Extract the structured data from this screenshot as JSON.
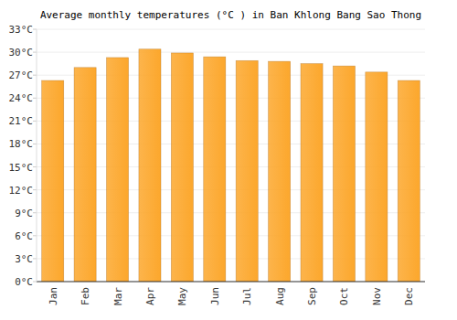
{
  "chart_data": {
    "type": "bar",
    "title": "Average monthly temperatures (°C ) in Ban Khlong Bang Sao Thong",
    "categories": [
      "Jan",
      "Feb",
      "Mar",
      "Apr",
      "May",
      "Jun",
      "Jul",
      "Aug",
      "Sep",
      "Oct",
      "Nov",
      "Dec"
    ],
    "values": [
      26.3,
      28.0,
      29.3,
      30.4,
      29.9,
      29.4,
      28.9,
      28.8,
      28.5,
      28.2,
      27.4,
      26.3
    ],
    "color": "#fca72c",
    "ylim": [
      0,
      33
    ],
    "yticks": [
      {
        "value": 0,
        "label": "0°C"
      },
      {
        "value": 3,
        "label": "3°C"
      },
      {
        "value": 6,
        "label": "6°C"
      },
      {
        "value": 9,
        "label": "9°C"
      },
      {
        "value": 12,
        "label": "12°C"
      },
      {
        "value": 15,
        "label": "15°C"
      },
      {
        "value": 18,
        "label": "18°C"
      },
      {
        "value": 21,
        "label": "21°C"
      },
      {
        "value": 24,
        "label": "24°C"
      },
      {
        "value": 27,
        "label": "27°C"
      },
      {
        "value": 30,
        "label": "30°C"
      },
      {
        "value": 33,
        "label": "33°C"
      }
    ],
    "grid": true
  }
}
